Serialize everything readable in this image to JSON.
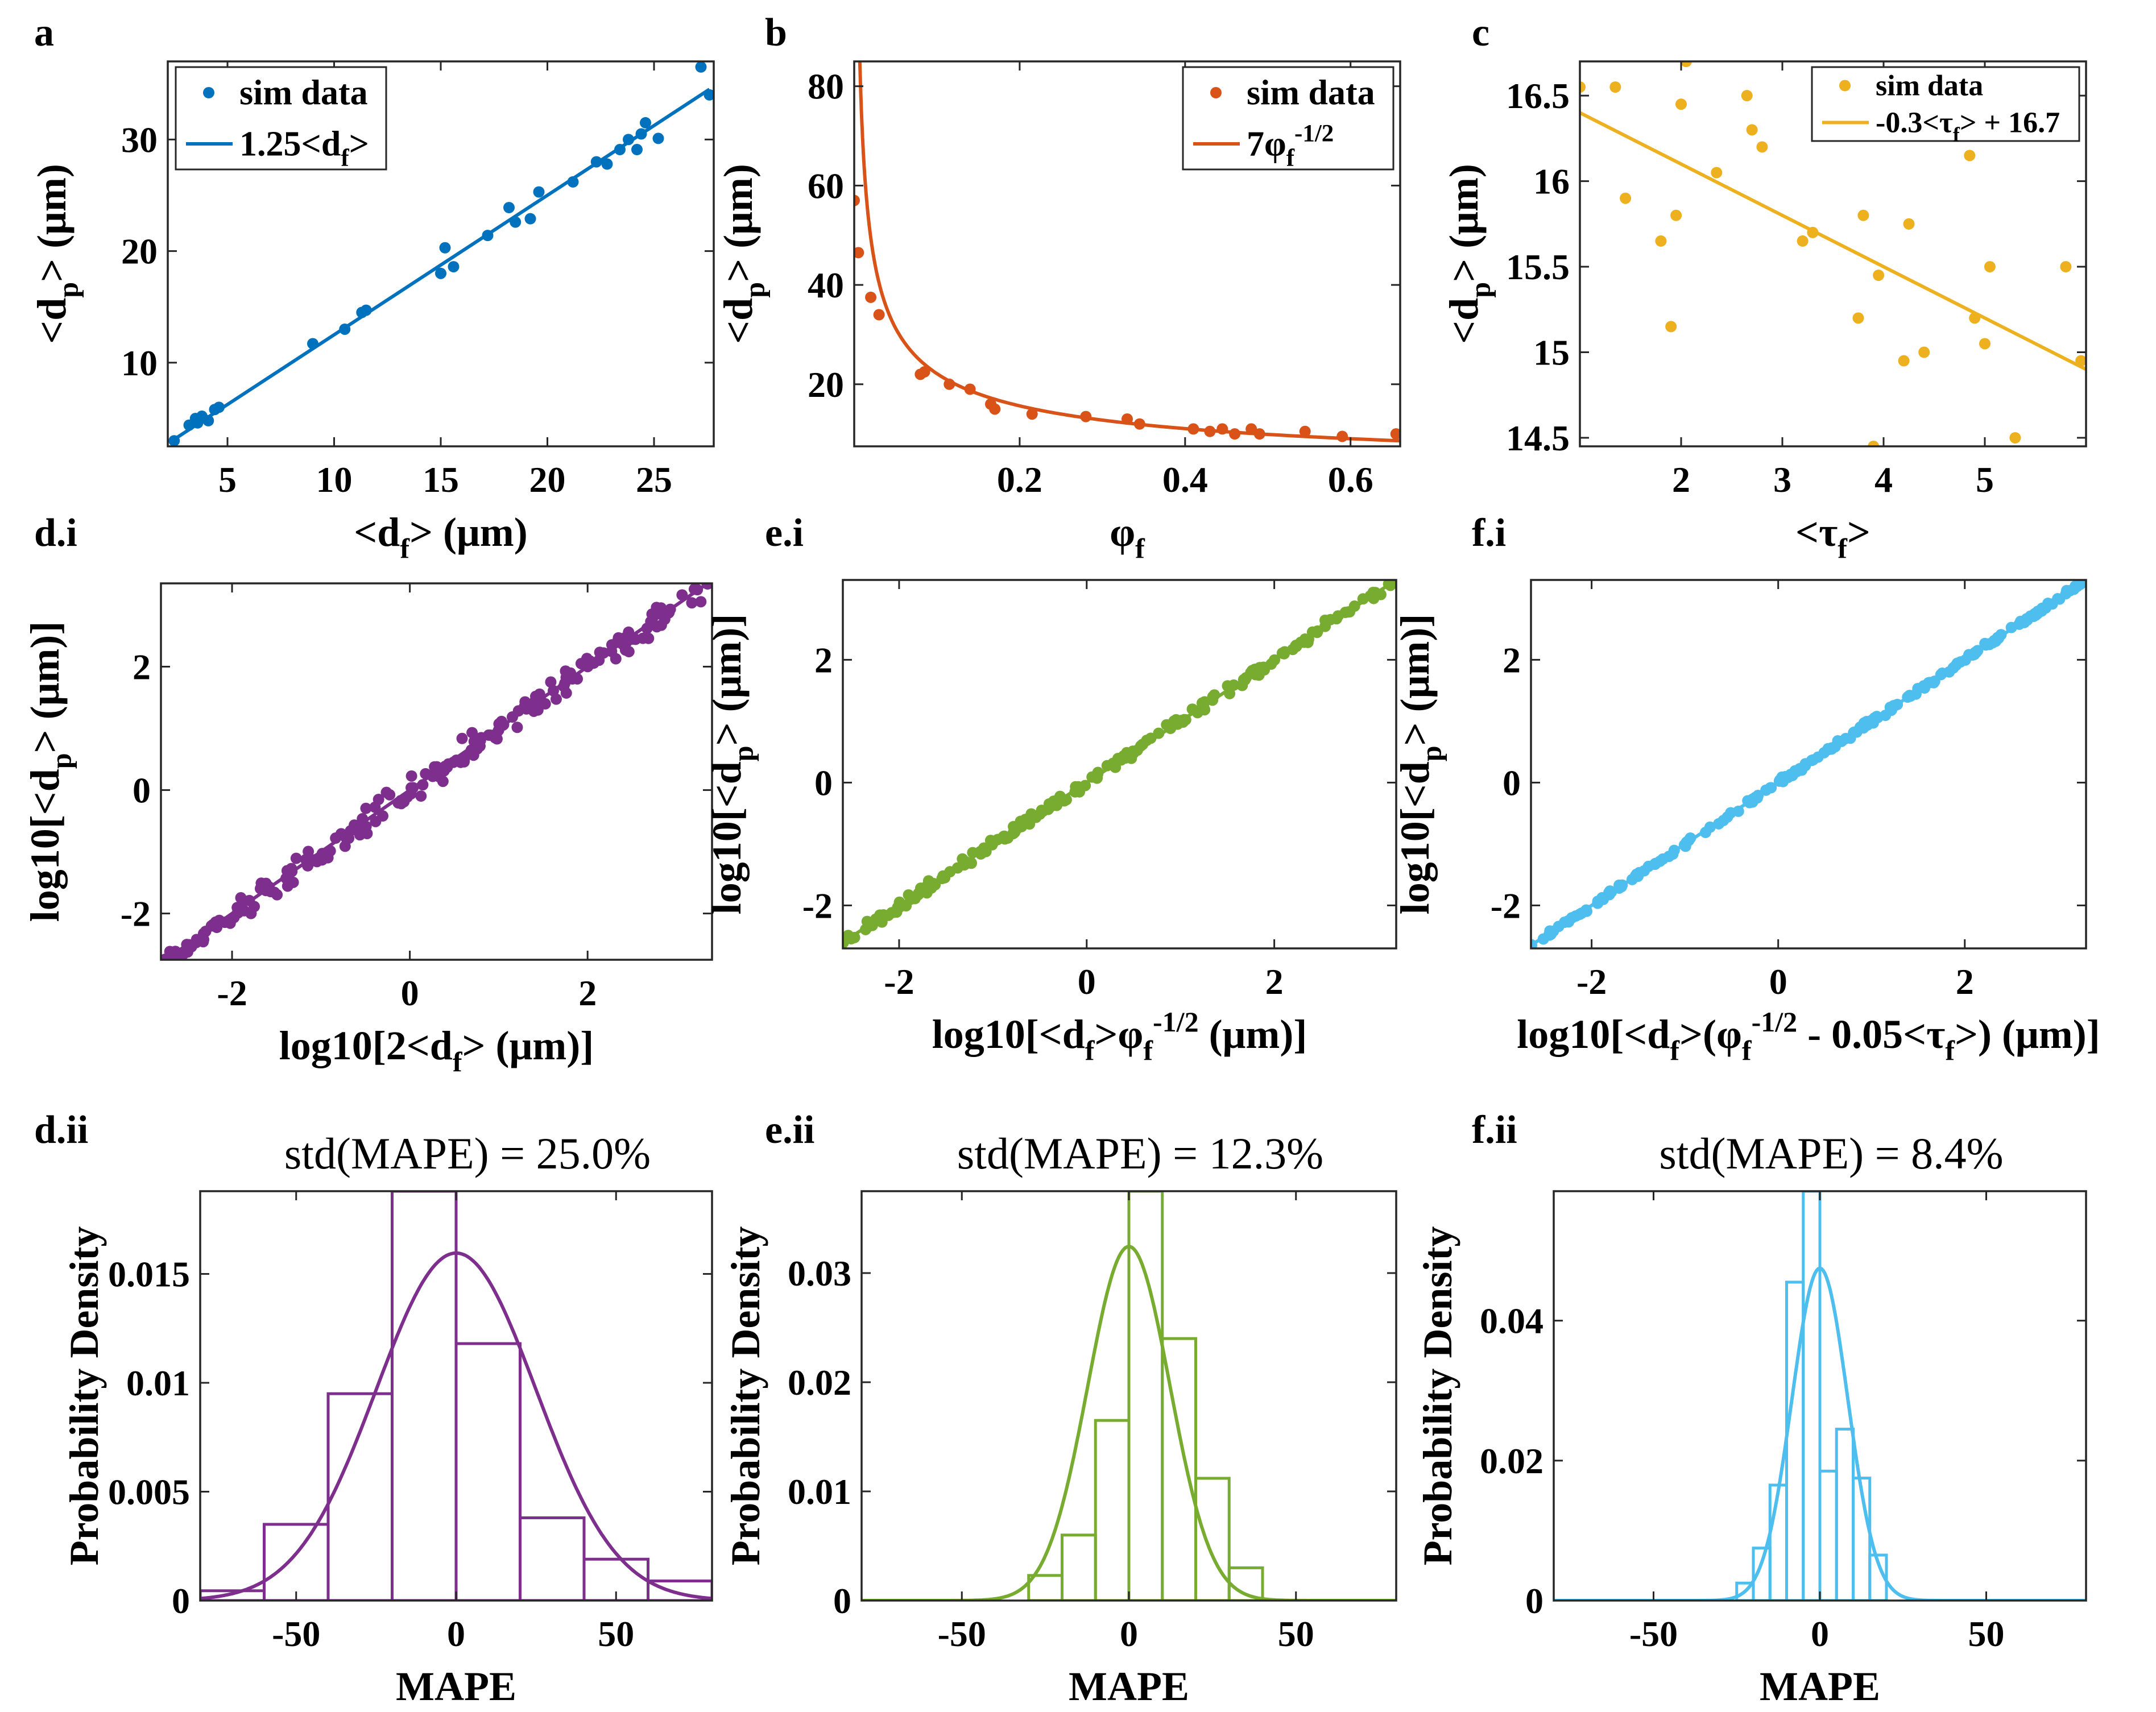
{
  "figure": {
    "panels": [
      {
        "id": "a",
        "label": "a"
      },
      {
        "id": "b",
        "label": "b"
      },
      {
        "id": "c",
        "label": "c"
      },
      {
        "id": "di",
        "label": "d.i"
      },
      {
        "id": "ei",
        "label": "e.i"
      },
      {
        "id": "fi",
        "label": "f.i"
      },
      {
        "id": "dii",
        "label": "d.ii"
      },
      {
        "id": "eii",
        "label": "e.ii"
      },
      {
        "id": "fii",
        "label": "f.ii"
      }
    ]
  },
  "chart_data": [
    {
      "id": "a",
      "type": "scatter",
      "color": "#0072BD",
      "xlabel": "<d_f> (μm)",
      "ylabel": "<d_p> (μm)",
      "xlim": [
        2.2,
        27.8
      ],
      "ylim": [
        2.5,
        37.0
      ],
      "xticks": [
        5,
        10,
        15,
        20,
        25
      ],
      "yticks": [
        10,
        20,
        30
      ],
      "legend": {
        "placement": "top-left",
        "entries": [
          "sim data",
          "1.25<d_f>"
        ]
      },
      "series": [
        {
          "name": "sim data",
          "kind": "points",
          "x": [
            2.5,
            3.2,
            3.5,
            3.6,
            3.7,
            3.8,
            4.1,
            4.4,
            4.6,
            9.0,
            10.5,
            11.3,
            11.5,
            15.0,
            15.2,
            15.6,
            17.2,
            18.2,
            18.5,
            19.2,
            19.6,
            21.2,
            22.3,
            22.8,
            23.4,
            23.8,
            24.2,
            24.4,
            24.6,
            25.2,
            27.2,
            27.6
          ],
          "y": [
            3.0,
            4.4,
            5.0,
            4.6,
            5.0,
            5.2,
            4.8,
            5.8,
            6.0,
            11.7,
            13.0,
            14.5,
            14.7,
            18.0,
            20.3,
            18.6,
            21.4,
            23.9,
            22.6,
            22.9,
            25.3,
            26.2,
            28.0,
            27.8,
            29.1,
            30.0,
            29.1,
            30.5,
            31.5,
            30.1,
            36.5,
            34.0
          ]
        },
        {
          "name": "1.25<d_f>",
          "kind": "line",
          "x": [
            2.4,
            27.6
          ],
          "y": [
            3.0,
            34.5
          ]
        }
      ]
    },
    {
      "id": "b",
      "type": "scatter",
      "color": "#D95319",
      "xlabel": "φ_f",
      "ylabel": "<d_p> (μm)",
      "xlim": [
        0.0,
        0.66
      ],
      "ylim": [
        7.5,
        85.0
      ],
      "xticks": [
        0.2,
        0.4,
        0.6
      ],
      "yticks": [
        20,
        40,
        60,
        80
      ],
      "legend": {
        "placement": "top-right",
        "entries": [
          "sim data",
          "7φ_f^(-1/2)"
        ]
      },
      "series": [
        {
          "name": "sim data",
          "kind": "points",
          "x": [
            0.0,
            0.005,
            0.02,
            0.03,
            0.08,
            0.085,
            0.115,
            0.14,
            0.165,
            0.17,
            0.215,
            0.28,
            0.33,
            0.345,
            0.41,
            0.43,
            0.445,
            0.46,
            0.48,
            0.49,
            0.545,
            0.59,
            0.655
          ],
          "y": [
            57.0,
            46.5,
            37.5,
            34.0,
            22.0,
            22.5,
            20.0,
            19.0,
            16.0,
            15.0,
            14.0,
            13.5,
            13.0,
            12.0,
            11.0,
            10.5,
            11.0,
            10.0,
            11.0,
            10.0,
            10.5,
            9.5,
            10.0
          ]
        },
        {
          "name": "7φ_f^(-1/2)",
          "kind": "line",
          "expr": "7*x^-0.5",
          "x": [
            0.0067,
            0.66
          ]
        }
      ]
    },
    {
      "id": "c",
      "type": "scatter",
      "color": "#EDB120",
      "xlabel": "<τ_f>",
      "ylabel": "<d_p> (μm)",
      "xlim": [
        1.0,
        6.0
      ],
      "ylim": [
        14.45,
        16.7
      ],
      "xticks": [
        2,
        3,
        4,
        5
      ],
      "yticks": [
        14.5,
        15,
        15.5,
        16,
        16.5
      ],
      "legend": {
        "placement": "top-right",
        "entries": [
          "sim data",
          "-0.3<τ_f> + 16.7"
        ]
      },
      "series": [
        {
          "name": "sim data",
          "kind": "points",
          "x": [
            1.0,
            1.35,
            1.45,
            1.8,
            1.9,
            1.95,
            2.0,
            2.05,
            2.35,
            2.65,
            2.7,
            2.8,
            3.2,
            3.3,
            3.75,
            3.8,
            3.9,
            3.95,
            4.2,
            4.25,
            4.4,
            4.85,
            4.9,
            5.0,
            5.05,
            5.3,
            5.8,
            5.95
          ],
          "y": [
            16.55,
            16.55,
            15.9,
            15.65,
            15.15,
            15.8,
            16.45,
            16.7,
            16.05,
            16.5,
            16.3,
            16.2,
            15.65,
            15.7,
            15.2,
            15.8,
            14.45,
            15.45,
            14.95,
            15.75,
            15.0,
            16.15,
            15.2,
            15.05,
            15.5,
            14.5,
            15.5,
            14.95
          ]
        },
        {
          "name": "-0.3<τ_f> + 16.7",
          "kind": "line",
          "x": [
            1.0,
            6.0
          ],
          "y": [
            16.4,
            14.9
          ]
        }
      ]
    },
    {
      "id": "di",
      "type": "scatter",
      "color": "#7E2F8E",
      "xlabel": "log10[2<d_f> (μm)]",
      "ylabel": "log10[<d_p> (μm)]",
      "xlim": [
        -2.8,
        3.4
      ],
      "ylim": [
        -2.75,
        3.35
      ],
      "xticks": [
        -2,
        0,
        2
      ],
      "yticks": [
        -2,
        0,
        2
      ],
      "scatter_noise": 0.09,
      "series": [
        {
          "name": "",
          "kind": "line",
          "x": [
            -2.75,
            3.35
          ],
          "y": [
            -2.75,
            3.35
          ]
        }
      ]
    },
    {
      "id": "ei",
      "type": "scatter",
      "color": "#77AC30",
      "xlabel": "log10[<d_f>φ_f^(-1/2) (μm)]",
      "ylabel": "log10[<d_p> (μm)]",
      "xlim": [
        -2.6,
        3.3
      ],
      "ylim": [
        -2.7,
        3.3
      ],
      "xticks": [
        -2,
        0,
        2
      ],
      "yticks": [
        -2,
        0,
        2
      ],
      "scatter_noise": 0.04,
      "series": [
        {
          "name": "",
          "kind": "line",
          "x": [
            -2.6,
            3.3
          ],
          "y": [
            -2.6,
            3.3
          ]
        }
      ]
    },
    {
      "id": "fi",
      "type": "scatter",
      "color": "#4DBEEE",
      "xlabel": "log10[<d_f>(φ_f^(-1/2) - 0.05<τ_f>) (μm)]",
      "ylabel": "log10[<d_p> (μm)]",
      "xlim": [
        -2.65,
        3.3
      ],
      "ylim": [
        -2.7,
        3.3
      ],
      "xticks": [
        -2,
        0,
        2
      ],
      "yticks": [
        -2,
        0,
        2
      ],
      "scatter_noise": 0.02,
      "series": [
        {
          "name": "",
          "kind": "line",
          "x": [
            -2.65,
            3.3
          ],
          "y": [
            -2.65,
            3.3
          ]
        }
      ]
    },
    {
      "id": "dii",
      "type": "histogram",
      "color": "#7E2F8E",
      "title": "std(MAPE) = 25.0%",
      "xlabel": "MAPE",
      "ylabel": "Probability Density",
      "xlim": [
        -80,
        80
      ],
      "ylim": [
        0,
        0.0188
      ],
      "xticks": [
        -50,
        0,
        50
      ],
      "yticks": [
        0,
        0.005,
        0.01,
        0.015
      ],
      "ytick_labels": [
        "0",
        "0.005",
        "0.01",
        "0.015"
      ],
      "bins": [
        -80,
        -60,
        -40,
        -20,
        0,
        20,
        40,
        60,
        80
      ],
      "density": [
        0.00045,
        0.0035,
        0.0095,
        0.0188,
        0.0118,
        0.0038,
        0.0019,
        0.0009
      ],
      "fit": {
        "kind": "normal",
        "mean": 0,
        "std": 25.0
      }
    },
    {
      "id": "eii",
      "type": "histogram",
      "color": "#77AC30",
      "title": "std(MAPE) = 12.3%",
      "xlabel": "MAPE",
      "ylabel": "Probability Density",
      "xlim": [
        -80,
        80
      ],
      "ylim": [
        0,
        0.0375
      ],
      "xticks": [
        -50,
        0,
        50
      ],
      "yticks": [
        0,
        0.01,
        0.02,
        0.03
      ],
      "ytick_labels": [
        "0",
        "0.01",
        "0.02",
        "0.03"
      ],
      "bins": [
        -40,
        -30,
        -20,
        -10,
        0,
        10,
        20,
        30,
        40
      ],
      "density": [
        0.0,
        0.0023,
        0.006,
        0.0165,
        0.0375,
        0.024,
        0.0112,
        0.003
      ],
      "fit": {
        "kind": "normal",
        "mean": 0,
        "std": 12.3
      }
    },
    {
      "id": "fii",
      "type": "histogram",
      "color": "#4DBEEE",
      "title": "std(MAPE) = 8.4%",
      "xlabel": "MAPE",
      "ylabel": "Probability Density",
      "xlim": [
        -80,
        80
      ],
      "ylim": [
        0,
        0.0585
      ],
      "xticks": [
        -50,
        0,
        50
      ],
      "yticks": [
        0,
        0.02,
        0.04
      ],
      "ytick_labels": [
        "0",
        "0.02",
        "0.04"
      ],
      "bins": [
        -25,
        -20,
        -15,
        -10,
        -5,
        0,
        5,
        10,
        15,
        20
      ],
      "density": [
        0.0025,
        0.0075,
        0.0165,
        0.0455,
        0.0585,
        0.0185,
        0.0245,
        0.0175,
        0.0065
      ],
      "fit": {
        "kind": "normal",
        "mean": 0,
        "std": 8.4
      }
    }
  ]
}
